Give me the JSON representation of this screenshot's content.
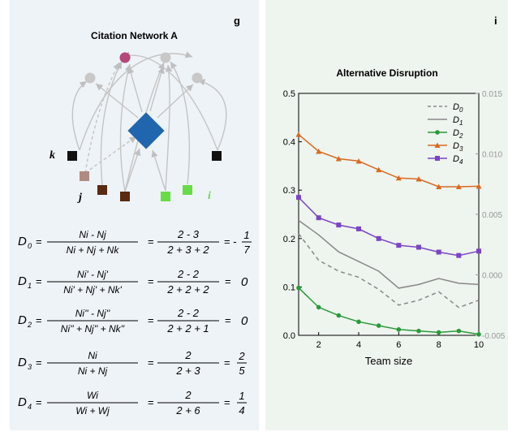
{
  "panel_g": {
    "letter": "g",
    "title": "Citation Network A",
    "labels": {
      "k": "k",
      "j": "j",
      "i": "i"
    },
    "node_colors": {
      "focal": "#1f66ae",
      "upper_cited": "#b5477b",
      "gray": "#c8c8c8",
      "k": "#111111",
      "j_light": "#b08a80",
      "j_dark": "#5a2a12",
      "i": "#66dd44"
    },
    "equations": [
      {
        "lhs": "D0",
        "num": "Ni - Nj",
        "den": "Ni + Nj + Nk",
        "num_val": "2 - 3",
        "den_val": "2 + 3 + 2",
        "result_prefix": "= -",
        "result_num": "1",
        "result_den": "7"
      },
      {
        "lhs": "D1",
        "num": "Ni' - Nj'",
        "den": "Ni' + Nj' + Nk'",
        "num_val": "2 - 2",
        "den_val": "2 + 2 + 2",
        "result": "0"
      },
      {
        "lhs": "D2",
        "num": "Ni'' - Nj''",
        "den": "Ni'' + Nj'' + Nk''",
        "num_val": "2 - 2",
        "den_val": "2 + 2 + 1",
        "result": "0"
      },
      {
        "lhs": "D3",
        "num": "Ni",
        "den": "Ni + Nj",
        "num_val": "2",
        "den_val": "2 + 3",
        "result_num": "2",
        "result_den": "5"
      },
      {
        "lhs": "D4",
        "num": "Wi",
        "den": "Wi + Wj",
        "num_val": "2",
        "den_val": "2 + 6",
        "result_num": "1",
        "result_den": "4"
      }
    ]
  },
  "panel_i": {
    "letter": "i"
  },
  "chart_data": {
    "type": "line",
    "title": "Alternative Disruption",
    "xlabel": "Team size",
    "ylabel": "",
    "x": [
      1,
      2,
      3,
      4,
      5,
      6,
      7,
      8,
      9,
      10
    ],
    "xlim": [
      1,
      10
    ],
    "ylim": [
      0,
      0.5
    ],
    "xticks": [
      "2",
      "4",
      "6",
      "8",
      "10"
    ],
    "yticks": [
      "0.0",
      "0.1",
      "0.2",
      "0.3",
      "0.4",
      "0.5"
    ],
    "y2lim": [
      -0.005,
      0.015
    ],
    "y2ticks": [
      "0.015",
      "0.010",
      "0.005",
      "0.000",
      "-0.005"
    ],
    "grid": false,
    "legend_position": "top-right",
    "series": [
      {
        "name": "D0",
        "color": "#888888",
        "style": "dashed",
        "marker": "none",
        "axis": "right",
        "values": [
          0.0034,
          0.0012,
          0.0003,
          -0.0002,
          -0.0012,
          -0.0025,
          -0.0021,
          -0.0014,
          -0.0027,
          -0.0021
        ]
      },
      {
        "name": "D1",
        "color": "#888888",
        "style": "solid",
        "marker": "none",
        "axis": "right",
        "values": [
          0.0045,
          0.0033,
          0.0019,
          0.0011,
          0.0003,
          -0.0011,
          -0.0008,
          -0.0003,
          -0.0007,
          -0.0008
        ]
      },
      {
        "name": "D2",
        "color": "#2a9a3a",
        "style": "solid",
        "marker": "circle",
        "axis": "left",
        "values": [
          0.098,
          0.058,
          0.041,
          0.028,
          0.02,
          0.012,
          0.009,
          0.006,
          0.009,
          0.002
        ]
      },
      {
        "name": "D3",
        "color": "#d86a20",
        "style": "solid",
        "marker": "triangle",
        "axis": "left",
        "values": [
          0.415,
          0.38,
          0.365,
          0.36,
          0.342,
          0.325,
          0.323,
          0.307,
          0.307,
          0.308
        ]
      },
      {
        "name": "D4",
        "color": "#7a45c4",
        "style": "solid",
        "marker": "square",
        "axis": "left",
        "values": [
          0.285,
          0.243,
          0.228,
          0.22,
          0.2,
          0.186,
          0.182,
          0.172,
          0.165,
          0.174
        ]
      }
    ]
  }
}
